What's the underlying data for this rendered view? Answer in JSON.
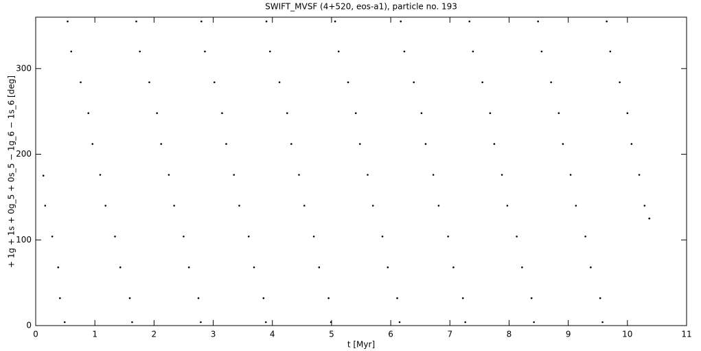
{
  "chart_data": {
    "type": "scatter",
    "title": "SWIFT_MVSF (4+520, eos-a1), particle no. 193",
    "x_label": "t [Myr]",
    "y_label": "+ 1g + 1s + 0g_5 + 0s_5 − 1g_6 − 1s_6 [deg]",
    "color": "#000000",
    "xlim": [
      0,
      11
    ],
    "xticks": [
      0,
      1,
      2,
      3,
      4,
      5,
      6,
      7,
      8,
      9,
      10,
      11
    ],
    "ylim": [
      0,
      360
    ],
    "yticks": [
      0,
      100,
      200,
      300
    ],
    "x": [
      0.13,
      0.16,
      0.28,
      0.38,
      0.41,
      0.49,
      0.54,
      0.6,
      0.76,
      0.89,
      0.96,
      1.09,
      1.18,
      1.34,
      1.43,
      1.59,
      1.63,
      1.7,
      1.76,
      1.92,
      2.05,
      2.12,
      2.25,
      2.34,
      2.5,
      2.59,
      2.75,
      2.79,
      2.8,
      2.86,
      3.02,
      3.15,
      3.22,
      3.35,
      3.44,
      3.6,
      3.69,
      3.85,
      3.89,
      3.9,
      3.96,
      4.12,
      4.25,
      4.32,
      4.45,
      4.54,
      4.7,
      4.79,
      4.95,
      4.99,
      5.06,
      5.12,
      5.28,
      5.41,
      5.48,
      5.61,
      5.7,
      5.86,
      5.95,
      6.11,
      6.15,
      6.17,
      6.23,
      6.39,
      6.52,
      6.59,
      6.72,
      6.81,
      6.97,
      7.06,
      7.22,
      7.26,
      7.33,
      7.39,
      7.55,
      7.68,
      7.75,
      7.88,
      7.97,
      8.13,
      8.22,
      8.38,
      8.42,
      8.49,
      8.55,
      8.71,
      8.84,
      8.91,
      9.04,
      9.13,
      9.29,
      9.38,
      9.54,
      9.58,
      9.65,
      9.71,
      9.87,
      10.0,
      10.07,
      10.2,
      10.29,
      10.37
    ],
    "values": [
      175,
      140,
      104,
      68,
      32,
      4,
      355,
      320,
      284,
      248,
      212,
      176,
      140,
      104,
      68,
      32,
      4,
      355,
      320,
      284,
      248,
      212,
      176,
      140,
      104,
      68,
      32,
      4,
      355,
      320,
      284,
      248,
      212,
      176,
      140,
      104,
      68,
      32,
      4,
      355,
      320,
      284,
      248,
      212,
      176,
      140,
      104,
      68,
      32,
      4,
      355,
      320,
      284,
      248,
      212,
      176,
      140,
      104,
      68,
      32,
      4,
      355,
      320,
      284,
      248,
      212,
      176,
      140,
      104,
      68,
      32,
      4,
      355,
      320,
      284,
      248,
      212,
      176,
      140,
      104,
      68,
      32,
      4,
      355,
      320,
      284,
      248,
      212,
      176,
      140,
      104,
      68,
      32,
      4,
      355,
      320,
      284,
      248,
      212,
      176,
      140,
      125
    ]
  }
}
